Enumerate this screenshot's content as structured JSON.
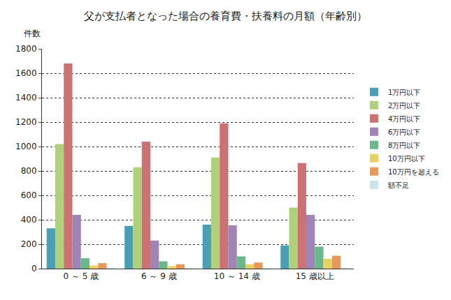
{
  "chart_data": {
    "type": "bar",
    "title": "父が支払者となった場合の養育費・扶養料の月額（年齢別）",
    "y_label": "件数",
    "categories": [
      "0 ～ 5 歳",
      "6 ～ 9 歳",
      "10 ～ 14 歳",
      "15 歳以上"
    ],
    "series": [
      {
        "name": "1万円以下",
        "color": "#4a9fb5",
        "values": [
          330,
          350,
          360,
          190
        ]
      },
      {
        "name": "2万円以下",
        "color": "#afd17c",
        "values": [
          1020,
          830,
          910,
          500
        ]
      },
      {
        "name": "4万円以下",
        "color": "#cd7272",
        "values": [
          1680,
          1040,
          1190,
          865
        ]
      },
      {
        "name": "6万円以下",
        "color": "#a084b8",
        "values": [
          440,
          230,
          355,
          440
        ]
      },
      {
        "name": "8万円以下",
        "color": "#6bb98a",
        "values": [
          85,
          60,
          100,
          180
        ]
      },
      {
        "name": "10万円以下",
        "color": "#e8d264",
        "values": [
          25,
          20,
          35,
          80
        ]
      },
      {
        "name": "10万円を超える",
        "color": "#e8995a",
        "values": [
          45,
          35,
          50,
          105
        ]
      },
      {
        "name": "額不足",
        "color": "#c9e6e9",
        "values": [
          5,
          5,
          5,
          5
        ]
      }
    ],
    "ylim": [
      0,
      1800
    ],
    "yticks": [
      0,
      200,
      400,
      600,
      800,
      1000,
      1200,
      1400,
      1600,
      1800
    ],
    "grid": true,
    "legend": "right"
  }
}
